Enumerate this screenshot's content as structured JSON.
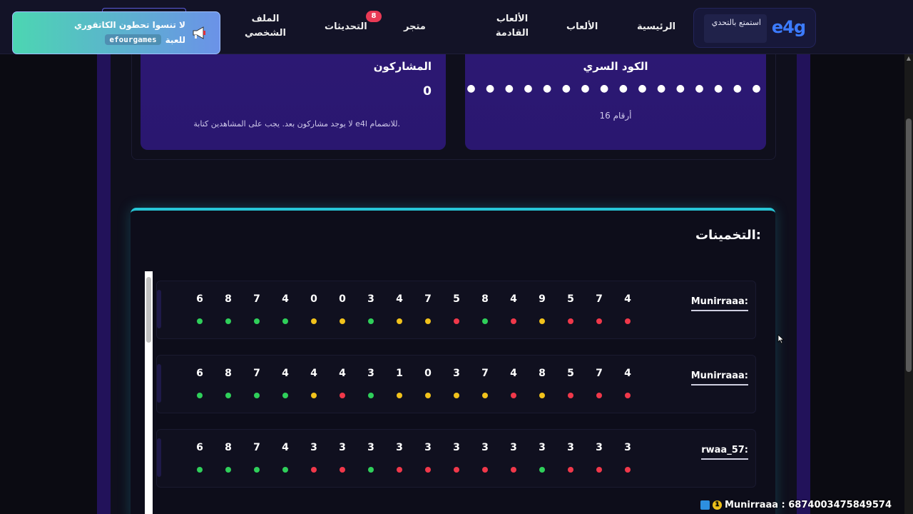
{
  "nav": {
    "brand_logo": "e4g",
    "brand_tag": "استمتع بالتحدي",
    "items": [
      "الرئيسية",
      "الألعاب",
      "الألعاب القادمة",
      "متجر",
      "التحديثات",
      "الملف الشخصي"
    ],
    "updates_badge": "8"
  },
  "toast": {
    "line1": "لا تنسوا تحطون الكاتقوري",
    "code": "efourgames",
    "line2_suffix": "للعبة"
  },
  "secret_card": {
    "title": "الكود السري",
    "dots": "● ● ● ● ● ● ● ● ● ● ● ● ● ● ● ●",
    "length_label": "16 أرقام"
  },
  "participants_card": {
    "title": "المشاركون",
    "count": "0",
    "note": "لا يوجد مشاركون بعد. يجب على المشاهدين كتابة e4l للانضمام."
  },
  "guesses": {
    "title": "التخمينات:",
    "rows": [
      {
        "user": "Munirraaa:",
        "digits": [
          "6",
          "8",
          "7",
          "4",
          "0",
          "0",
          "3",
          "4",
          "7",
          "5",
          "8",
          "4",
          "9",
          "5",
          "7",
          "4"
        ],
        "colors": [
          "green",
          "green",
          "green",
          "green",
          "yellow",
          "yellow",
          "green",
          "yellow",
          "yellow",
          "red",
          "green",
          "red",
          "yellow",
          "red",
          "red",
          "red"
        ]
      },
      {
        "user": "Munirraaa:",
        "digits": [
          "6",
          "8",
          "7",
          "4",
          "4",
          "4",
          "3",
          "1",
          "0",
          "3",
          "7",
          "4",
          "8",
          "5",
          "7",
          "4"
        ],
        "colors": [
          "green",
          "green",
          "green",
          "green",
          "yellow",
          "red",
          "green",
          "yellow",
          "yellow",
          "yellow",
          "yellow",
          "red",
          "yellow",
          "red",
          "red",
          "red"
        ]
      },
      {
        "user": "rwaa_57:",
        "digits": [
          "6",
          "8",
          "7",
          "4",
          "3",
          "3",
          "3",
          "3",
          "3",
          "3",
          "3",
          "3",
          "3",
          "3",
          "3",
          "3"
        ],
        "colors": [
          "green",
          "green",
          "green",
          "green",
          "red",
          "red",
          "green",
          "red",
          "red",
          "red",
          "red",
          "red",
          "green",
          "red",
          "red",
          "red"
        ]
      }
    ]
  },
  "viewer": {
    "badge": "1",
    "text": "Munirraaa : 6874003475849574"
  }
}
